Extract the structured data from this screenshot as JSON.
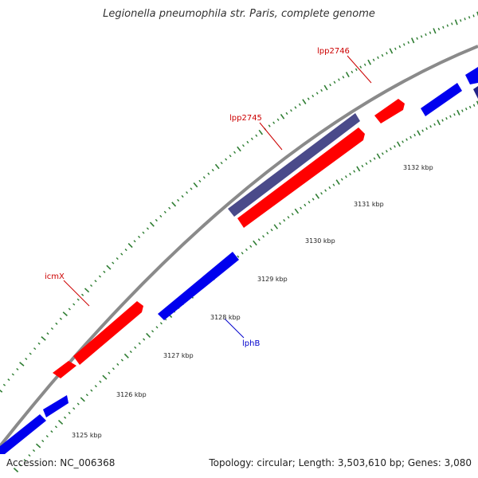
{
  "title": "Legionella pneumophila str. Paris, complete genome",
  "footer": {
    "accession": "Accession: NC_006368",
    "summary": "Topology: circular; Length: 3,503,610 bp; Genes: 3,080"
  },
  "colors": {
    "backbone": "#8a8a8a",
    "tick_major": "#2e7d32",
    "tick_minor": "#2e7d32",
    "plus_strand": "#ff0000",
    "minus_strand": "#0000ee",
    "highlight": "#4a4a8a",
    "label_red": "#cc0000",
    "label_blue": "#0000cc"
  },
  "scale_labels": [
    {
      "kbp": 3125,
      "text": "3125 kbp"
    },
    {
      "kbp": 3126,
      "text": "3126 kbp"
    },
    {
      "kbp": 3127,
      "text": "3127 kbp"
    },
    {
      "kbp": 3128,
      "text": "3128 kbp"
    },
    {
      "kbp": 3129,
      "text": "3129 kbp"
    },
    {
      "kbp": 3130,
      "text": "3130 kbp"
    },
    {
      "kbp": 3131,
      "text": "3131 kbp"
    },
    {
      "kbp": 3132,
      "text": "3132 kbp"
    }
  ],
  "gene_labels": [
    {
      "name": "icmX",
      "color": "red"
    },
    {
      "name": "lphB",
      "color": "blue"
    },
    {
      "name": "lpp2745",
      "color": "red"
    },
    {
      "name": "lpp2746",
      "color": "red"
    }
  ]
}
